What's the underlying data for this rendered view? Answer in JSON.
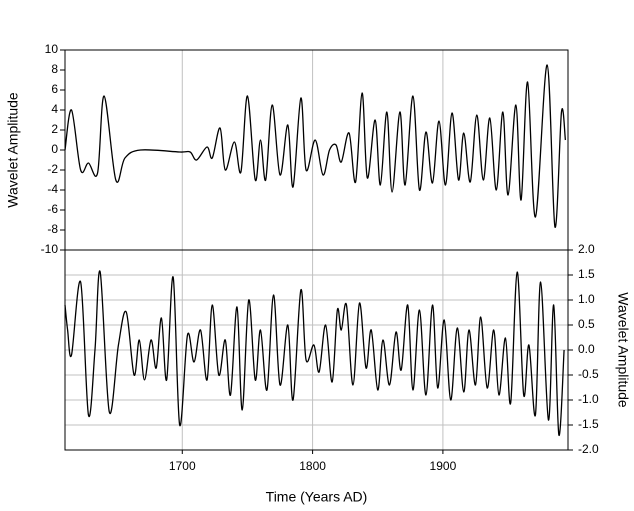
{
  "chart_data": [
    {
      "type": "line",
      "ylabel": "Wavelet Amplitude",
      "axis_side": "left",
      "color": "#000000",
      "grid": "x",
      "xlim": [
        1610,
        1996
      ],
      "xticks": [
        1700,
        1800,
        1900
      ],
      "ylim": [
        -10,
        10
      ],
      "yticks": [
        10,
        8,
        6,
        4,
        2,
        0,
        -2,
        -4,
        -6,
        -8,
        -10
      ],
      "x": [
        1610,
        1615,
        1622,
        1628,
        1635,
        1640,
        1649,
        1656,
        1668,
        1698,
        1706,
        1711,
        1719,
        1723,
        1729,
        1733,
        1740,
        1745,
        1750,
        1756,
        1760,
        1764,
        1769,
        1775,
        1781,
        1785,
        1791,
        1795,
        1802,
        1808,
        1813,
        1818,
        1822,
        1828,
        1833,
        1838,
        1842,
        1848,
        1852,
        1857,
        1861,
        1867,
        1871,
        1877,
        1882,
        1887,
        1892,
        1897,
        1902,
        1907,
        1912,
        1916,
        1921,
        1926,
        1931,
        1936,
        1941,
        1946,
        1950,
        1956,
        1960,
        1965,
        1971,
        1980,
        1986,
        1991,
        1994
      ],
      "values": [
        0,
        4,
        -2,
        -1.3,
        -2.3,
        5.4,
        -3,
        -0.8,
        0,
        -0.2,
        -0.2,
        -1,
        0.3,
        -0.8,
        2.2,
        -2,
        0.8,
        -2.2,
        5.4,
        -3,
        1,
        -3,
        4.5,
        -2.5,
        2.5,
        -3.7,
        5.2,
        -2,
        1,
        -2.5,
        0,
        0.5,
        -1.2,
        1.7,
        -3.2,
        5.7,
        -2.8,
        3,
        -3.5,
        3.8,
        -4.2,
        3.8,
        -3.5,
        5.4,
        -4,
        1.8,
        -3.3,
        2.9,
        -3.5,
        3.7,
        -3,
        1.7,
        -3.2,
        3.5,
        -3,
        3.2,
        -4,
        3.8,
        -4.5,
        4.5,
        -5,
        6.8,
        -6.7,
        8.5,
        -7.7,
        3.8,
        1
      ]
    },
    {
      "type": "line",
      "ylabel": "Wavelet Amplitude",
      "xlabel": "Time (Years AD)",
      "axis_side": "right",
      "color": "#000000",
      "grid": "both",
      "xlim": [
        1610,
        1996
      ],
      "xticks": [
        1700,
        1800,
        1900
      ],
      "ylim": [
        -2,
        2
      ],
      "yticks": [
        {
          "value": 2,
          "label": "2.0"
        },
        1.5,
        {
          "value": 1,
          "label": "1.0"
        },
        0.5,
        {
          "value": 0,
          "label": "0.0"
        },
        -0.5,
        {
          "value": -1,
          "label": "-1.0"
        },
        -1.5,
        {
          "value": -2,
          "label": "-2.0"
        }
      ],
      "x": [
        1610,
        1612,
        1615,
        1622,
        1628,
        1633,
        1637,
        1644,
        1651,
        1657,
        1663,
        1667,
        1671,
        1676,
        1680,
        1684,
        1688,
        1693,
        1698,
        1704,
        1709,
        1714,
        1719,
        1723,
        1728,
        1733,
        1737,
        1742,
        1746,
        1751,
        1756,
        1760,
        1765,
        1770,
        1775,
        1781,
        1785,
        1791,
        1795,
        1801,
        1805,
        1810,
        1815,
        1819,
        1822,
        1826,
        1831,
        1836,
        1841,
        1845,
        1850,
        1854,
        1859,
        1864,
        1868,
        1873,
        1877,
        1882,
        1887,
        1892,
        1896,
        1901,
        1906,
        1911,
        1916,
        1920,
        1925,
        1929,
        1934,
        1939,
        1943,
        1948,
        1952,
        1957,
        1962,
        1966,
        1971,
        1975,
        1981,
        1985,
        1989,
        1993
      ],
      "values": [
        0.9,
        0.4,
        -0.1,
        1.36,
        -1.3,
        0,
        1.56,
        -1.24,
        0.1,
        0.76,
        -0.5,
        0.2,
        -0.6,
        0.2,
        -0.36,
        0.64,
        -0.6,
        1.46,
        -1.5,
        0.3,
        -0.24,
        0.4,
        -0.6,
        0.9,
        -0.5,
        0.2,
        -0.9,
        0.86,
        -1.2,
        1.0,
        -0.6,
        0.4,
        -0.8,
        1.1,
        -0.7,
        0.5,
        -1.0,
        1.2,
        -0.2,
        0.1,
        -0.44,
        0.5,
        -0.64,
        0.8,
        0.4,
        0.9,
        -0.7,
        0.94,
        -0.36,
        0.4,
        -0.8,
        0.2,
        -0.7,
        0.36,
        -0.4,
        0.9,
        -0.8,
        0.8,
        -0.9,
        0.9,
        -0.76,
        0.6,
        -1.0,
        0.44,
        -0.84,
        0.4,
        -0.7,
        0.66,
        -0.76,
        0.4,
        -0.9,
        0.24,
        -1.06,
        1.56,
        -0.9,
        0.1,
        -1.3,
        1.36,
        -1.4,
        0.9,
        -1.7,
        0.0
      ]
    }
  ]
}
